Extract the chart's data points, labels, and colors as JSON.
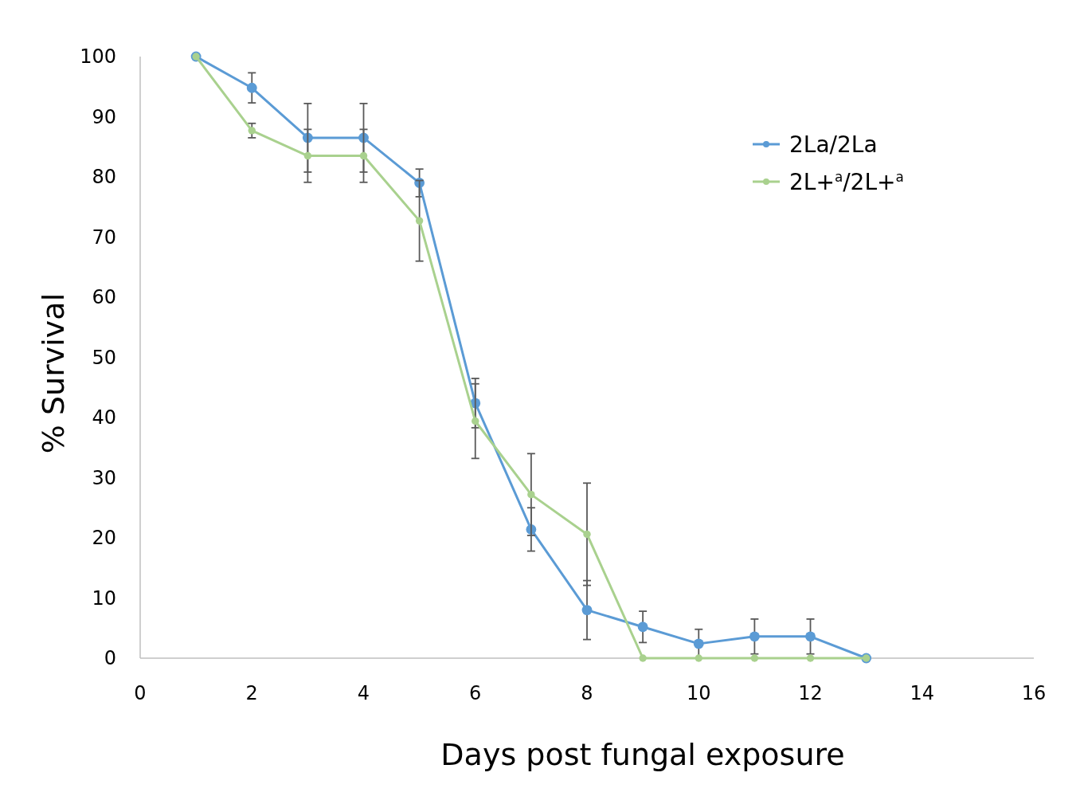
{
  "chart_data": {
    "type": "line",
    "xlabel": "Days post fungal exposure",
    "ylabel": "% Survival",
    "x": [
      1,
      2,
      3,
      4,
      5,
      6,
      7,
      8,
      9,
      10,
      11,
      12,
      13
    ],
    "xlim": [
      0,
      16
    ],
    "xticks": [
      0,
      2,
      4,
      6,
      8,
      10,
      12,
      14,
      16
    ],
    "ylim": [
      0,
      100
    ],
    "yticks": [
      0,
      10,
      20,
      30,
      40,
      50,
      60,
      70,
      80,
      90,
      100
    ],
    "grid": false,
    "legend": "top right",
    "marker": "circle",
    "line_style": "solid",
    "series": [
      {
        "name": "2La/2La",
        "color": "#5b9bd5",
        "values": [
          100,
          94.8,
          86.5,
          86.5,
          79.0,
          42.4,
          21.4,
          8.0,
          5.2,
          2.4,
          3.6,
          3.6,
          0
        ],
        "errors": [
          null,
          2.5,
          5.7,
          5.7,
          2.3,
          4.1,
          3.6,
          4.9,
          2.6,
          2.4,
          2.9,
          2.9,
          null
        ]
      },
      {
        "name": "2L+$^{a}$/2L+$^{a}$",
        "color": "#a9d18e",
        "values": [
          100,
          87.7,
          83.5,
          83.5,
          72.7,
          39.4,
          27.2,
          20.6,
          0,
          0,
          0,
          0,
          0
        ],
        "errors": [
          null,
          1.2,
          4.4,
          4.4,
          6.7,
          6.2,
          6.8,
          8.5,
          null,
          null,
          null,
          null,
          null
        ]
      }
    ]
  }
}
